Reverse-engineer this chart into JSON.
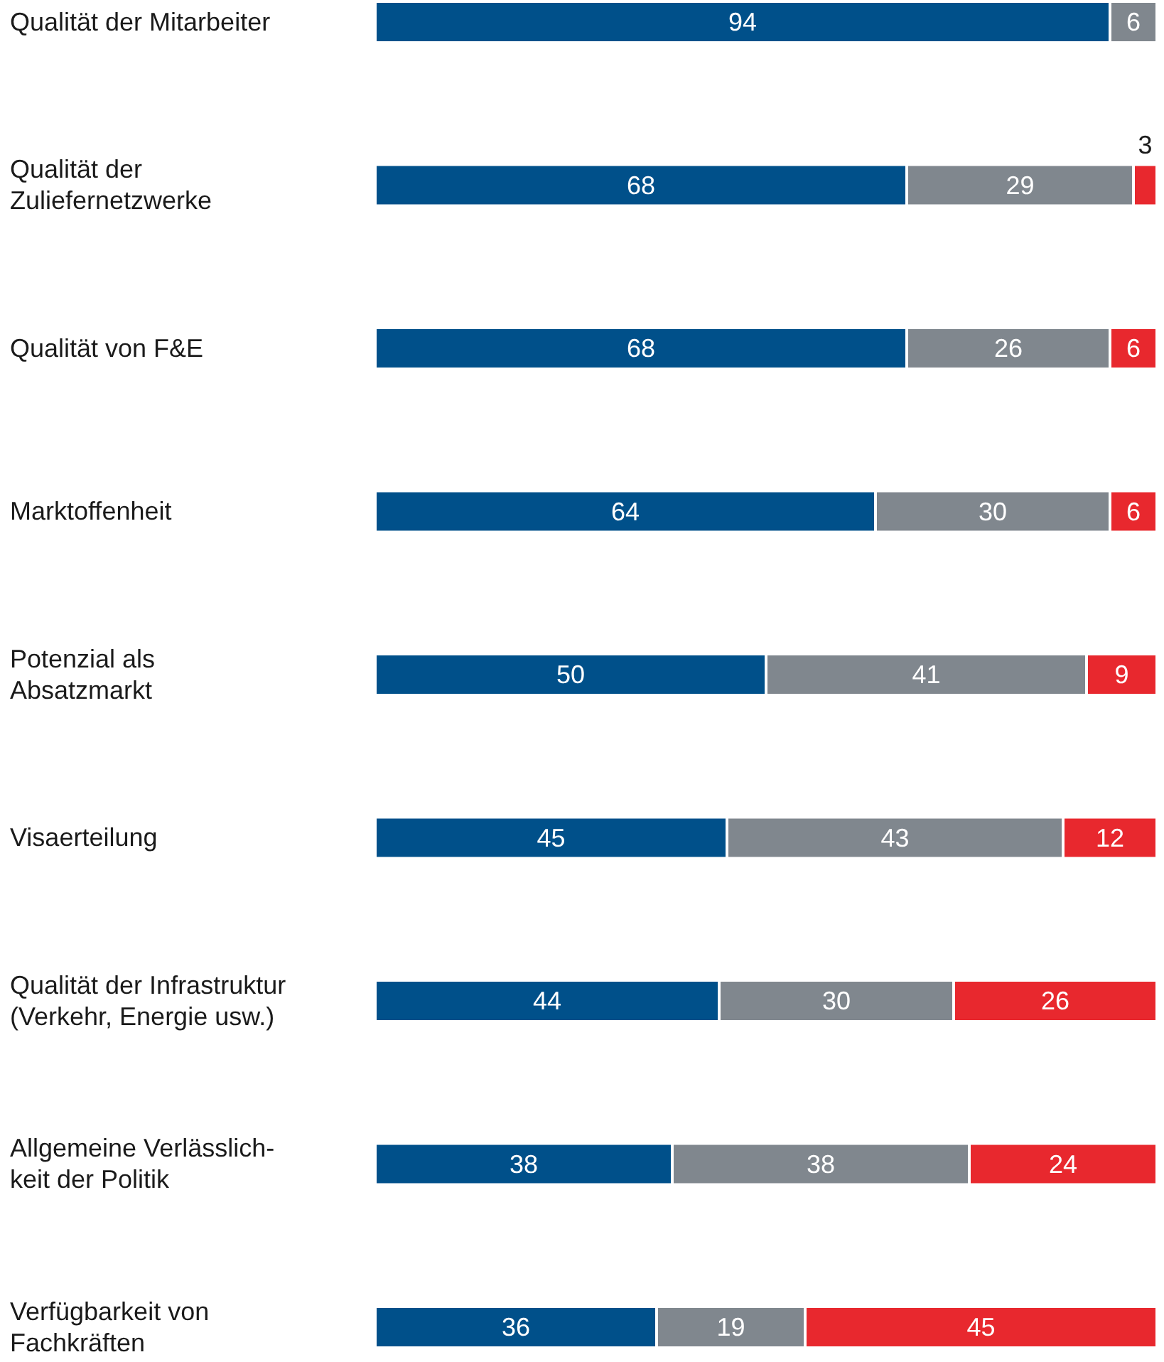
{
  "chart_data": {
    "type": "bar",
    "orientation": "horizontal",
    "stacked": true,
    "data_labels": true,
    "tick_labels": "y",
    "xlim": [
      0,
      100
    ],
    "categories": [
      "Qualität der Mitarbeiter",
      "Qualität der\nZuliefernetzwerke",
      "Qualität von F&E",
      "Marktoffenheit",
      "Potenzial als\nAbsatzmarkt",
      "Visaerteilung",
      "Qualität der Infrastruktur\n(Verkehr, Energie usw.)",
      "Allgemeine Verlässlich-\nkeit der Politik",
      "Verfügbarkeit von\nFachkräften"
    ],
    "series": [
      {
        "color": "#00508a",
        "values": [
          94,
          68,
          68,
          64,
          50,
          45,
          44,
          38,
          36
        ]
      },
      {
        "color": "#80878e",
        "values": [
          6,
          29,
          26,
          30,
          41,
          43,
          30,
          38,
          19
        ]
      },
      {
        "color": "#e8282e",
        "values": [
          null,
          3,
          6,
          6,
          9,
          12,
          26,
          24,
          45
        ]
      }
    ]
  }
}
